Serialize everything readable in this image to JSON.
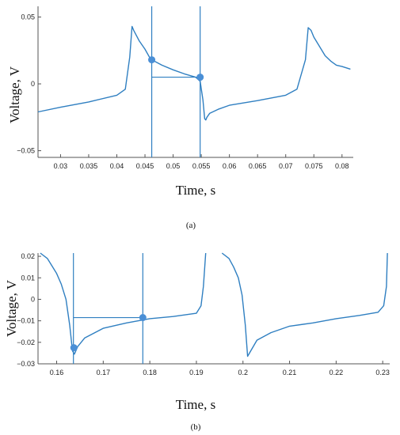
{
  "colors": {
    "trace": "#2f7fc1",
    "marker": "#4a8fd6",
    "axis": "#555555"
  },
  "chart_data": [
    {
      "type": "line",
      "panel_label": "(a)",
      "xlabel": "Time, s",
      "ylabel": "Voltage, V",
      "xlim": [
        0.026,
        0.082
      ],
      "ylim": [
        -0.055,
        0.058
      ],
      "x_ticks": [
        0.03,
        0.035,
        0.04,
        0.045,
        0.05,
        0.055,
        0.06,
        0.065,
        0.07,
        0.075,
        0.08
      ],
      "x_tick_labels": [
        "0.03",
        "0.035",
        "0.04",
        "0.045",
        "0.05",
        "0.055",
        "0.06",
        "0.065",
        "0.07",
        "0.075",
        "0.08"
      ],
      "y_ticks": [
        -0.05,
        0,
        0.05
      ],
      "y_tick_labels": [
        "−0.05",
        "0",
        "0.05"
      ],
      "series": [
        {
          "x": [
            0.026,
            0.03,
            0.035,
            0.04,
            0.0415,
            0.0423,
            0.0427,
            0.043,
            0.044,
            0.045,
            0.046,
            0.048,
            0.05,
            0.052,
            0.054,
            0.0548,
            0.0553,
            0.0556,
            0.0558,
            0.056,
            0.0565,
            0.058,
            0.06,
            0.065,
            0.07,
            0.072,
            0.0735,
            0.074,
            0.0745,
            0.075,
            0.076,
            0.077,
            0.078,
            0.079,
            0.08,
            0.0815
          ],
          "y": [
            -0.021,
            -0.0175,
            -0.0135,
            -0.0085,
            -0.004,
            0.02,
            0.043,
            0.04,
            0.032,
            0.026,
            0.0185,
            0.014,
            0.0105,
            0.0075,
            0.005,
            0.002,
            -0.012,
            -0.026,
            -0.027,
            -0.025,
            -0.022,
            -0.019,
            -0.016,
            -0.0125,
            -0.0085,
            -0.004,
            0.018,
            0.042,
            0.04,
            0.035,
            0.028,
            0.021,
            0.017,
            0.014,
            0.013,
            0.011
          ]
        }
      ],
      "vlines": [
        0.0462,
        0.0548
      ],
      "hline": {
        "y": 0.005,
        "x_from": 0.0462,
        "x_to": 0.0548
      },
      "markers": [
        {
          "x": 0.0462,
          "y": 0.018
        },
        {
          "x": 0.0548,
          "y": 0.005
        }
      ]
    },
    {
      "type": "line",
      "panel_label": "(b)",
      "xlabel": "Time, s",
      "ylabel": "Voltage, V",
      "xlim": [
        0.156,
        0.2315
      ],
      "ylim": [
        -0.03,
        0.0215
      ],
      "x_ticks": [
        0.16,
        0.17,
        0.18,
        0.19,
        0.2,
        0.21,
        0.22,
        0.23
      ],
      "x_tick_labels": [
        "0.16",
        "0.17",
        "0.18",
        "0.19",
        "0.2",
        "0.21",
        "0.22",
        "0.23"
      ],
      "y_ticks": [
        -0.03,
        -0.02,
        -0.01,
        0,
        0.01,
        0.02
      ],
      "y_tick_labels": [
        "−0.03",
        "−0.02",
        "−0.01",
        "0",
        "0.01",
        "0.02"
      ],
      "series": [
        {
          "x": [
            0.1565,
            0.158,
            0.16,
            0.161,
            0.162,
            0.1628,
            0.1634,
            0.1638,
            0.1645,
            0.166,
            0.17,
            0.175,
            0.18,
            0.185,
            0.19,
            0.191,
            0.1915,
            0.192
          ],
          "y": [
            0.0215,
            0.019,
            0.012,
            0.007,
            0.0,
            -0.012,
            -0.024,
            -0.0255,
            -0.022,
            -0.018,
            -0.0135,
            -0.011,
            -0.009,
            -0.008,
            -0.0065,
            -0.003,
            0.006,
            0.0215
          ]
        },
        {
          "x": [
            0.1955,
            0.197,
            0.198,
            0.199,
            0.1998,
            0.2005,
            0.201,
            0.203,
            0.206,
            0.21,
            0.215,
            0.22,
            0.225,
            0.229,
            0.2302,
            0.2308,
            0.231
          ],
          "y": [
            0.0215,
            0.019,
            0.015,
            0.01,
            0.002,
            -0.012,
            -0.0265,
            -0.019,
            -0.0155,
            -0.0125,
            -0.011,
            -0.009,
            -0.0075,
            -0.006,
            -0.003,
            0.006,
            0.0215
          ]
        }
      ],
      "vlines": [
        0.1636,
        0.1785
      ],
      "hline": {
        "y": -0.0085,
        "x_from": 0.1636,
        "x_to": 0.1785
      },
      "markers": [
        {
          "x": 0.1637,
          "y": -0.0225
        },
        {
          "x": 0.1785,
          "y": -0.0085
        }
      ]
    }
  ]
}
